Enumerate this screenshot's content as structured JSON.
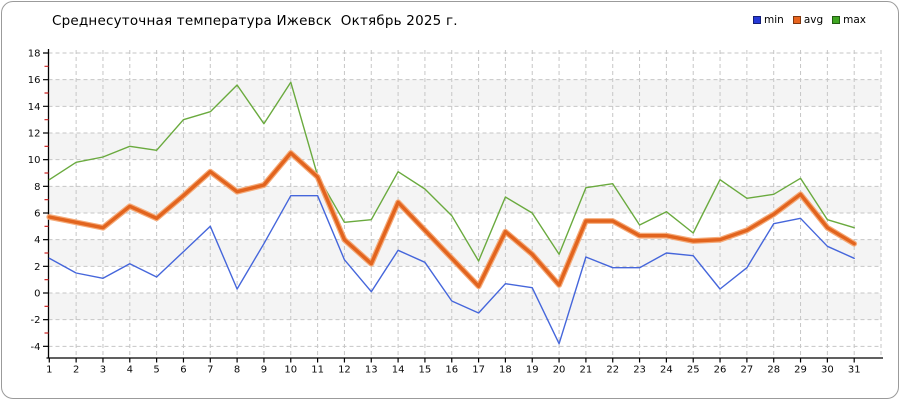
{
  "window": {
    "title": "Среднесуточная температура Ижевск  Октябрь 2025 г."
  },
  "legend": {
    "items": [
      {
        "label": "min",
        "color": "#2538D6"
      },
      {
        "label": "avg",
        "color": "#E8641E"
      },
      {
        "label": "max",
        "color": "#3FA622"
      }
    ]
  },
  "chart_data": {
    "type": "line",
    "title": "Среднесуточная температура Ижевск  Октябрь 2025 г.",
    "xlabel": "",
    "ylabel": "",
    "x": [
      1,
      2,
      3,
      4,
      5,
      6,
      7,
      8,
      9,
      10,
      11,
      12,
      13,
      14,
      15,
      16,
      17,
      18,
      19,
      20,
      21,
      22,
      23,
      24,
      25,
      26,
      27,
      28,
      29,
      30,
      31
    ],
    "y_ticks": [
      18,
      16,
      14,
      12,
      10,
      8,
      6,
      4,
      2,
      0,
      -2,
      -4
    ],
    "ylim": [
      -4,
      18
    ],
    "grid": true,
    "legend_position": "top-right",
    "series": [
      {
        "name": "max",
        "color": "#6AAA3E",
        "width": 1.4,
        "values": [
          8.5,
          9.8,
          10.2,
          11.0,
          10.7,
          13.0,
          13.6,
          15.6,
          12.7,
          15.8,
          8.8,
          5.3,
          5.5,
          9.1,
          7.8,
          5.8,
          2.4,
          7.2,
          6.0,
          2.9,
          7.9,
          8.2,
          5.1,
          6.1,
          4.5,
          8.5,
          7.1,
          7.4,
          8.6,
          5.5,
          4.9
        ]
      },
      {
        "name": "min",
        "color": "#4566DB",
        "width": 1.4,
        "values": [
          2.6,
          1.5,
          1.1,
          2.2,
          1.2,
          3.1,
          5.0,
          0.3,
          3.7,
          7.3,
          7.3,
          2.5,
          0.1,
          3.2,
          2.3,
          -0.6,
          -1.5,
          0.7,
          0.4,
          -3.8,
          2.7,
          1.9,
          1.9,
          3.0,
          2.8,
          0.3,
          1.9,
          5.2,
          5.6,
          3.5,
          2.6
        ]
      },
      {
        "name": "avg",
        "color": "#E2641E",
        "halo_color": "#F5AA78",
        "width": 3.4,
        "values": [
          5.7,
          5.3,
          4.9,
          6.5,
          5.6,
          7.3,
          9.1,
          7.6,
          8.1,
          10.5,
          8.7,
          4.0,
          2.2,
          6.8,
          4.7,
          2.6,
          0.5,
          4.6,
          2.9,
          0.6,
          5.4,
          5.4,
          4.3,
          4.3,
          3.9,
          4.0,
          4.7,
          5.9,
          7.4,
          4.9,
          3.7
        ]
      }
    ],
    "style": {
      "grid_color": "#C6C6C6",
      "band_color": "#F4F4F4",
      "axis_color": "#000000",
      "minor_tick_color": "#CC2222"
    }
  }
}
